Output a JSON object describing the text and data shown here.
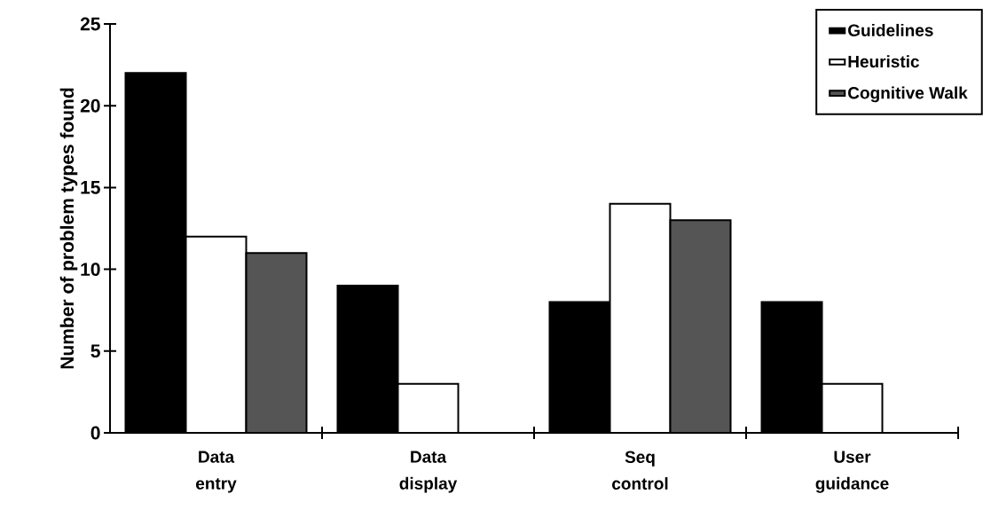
{
  "chart_data": {
    "type": "bar",
    "ylabel": "Number of problem types found",
    "categories": [
      "Data entry",
      "Data display",
      "Seq control",
      "User guidance"
    ],
    "series": [
      {
        "name": "Guidelines",
        "color": "#000000",
        "values": [
          22,
          9,
          8,
          8
        ]
      },
      {
        "name": "Heuristic",
        "color": "#ffffff",
        "values": [
          12,
          3,
          14,
          3
        ]
      },
      {
        "name": "Cognitive Walk",
        "color": "#555555",
        "values": [
          11,
          null,
          13,
          null
        ]
      }
    ],
    "ylim": [
      0,
      25
    ],
    "yticks": [
      0,
      5,
      10,
      15,
      20,
      25
    ],
    "grid": false,
    "legend": "top right"
  }
}
